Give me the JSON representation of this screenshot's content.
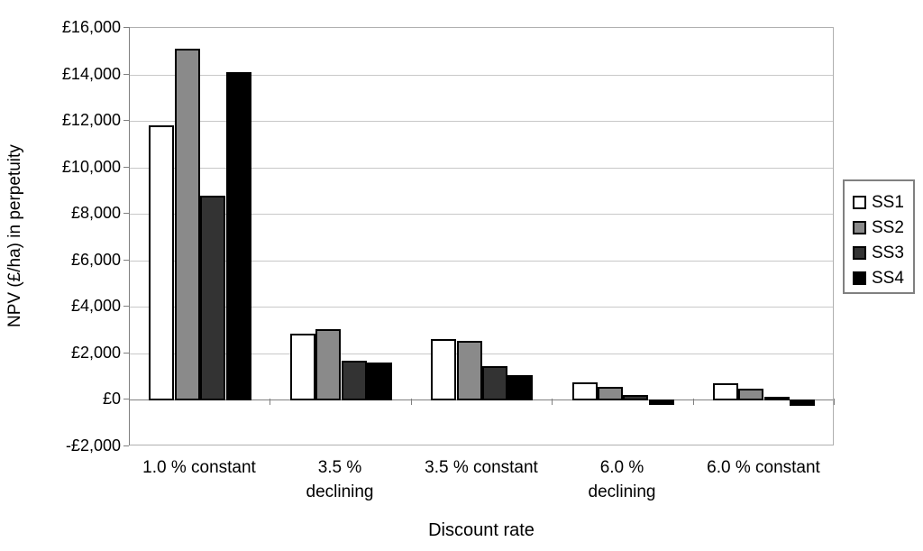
{
  "chart_data": {
    "type": "bar",
    "title": "",
    "xlabel": "Discount rate",
    "ylabel": "NPV (£/ha) in perpetuity",
    "categories": [
      "1.0 % constant",
      "3.5 %\ndeclining",
      "3.5 % constant",
      "6.0 %\ndeclining",
      "6.0 % constant"
    ],
    "series": [
      {
        "name": "SS1",
        "color": "#ffffff",
        "values": [
          11800,
          2850,
          2600,
          750,
          700
        ]
      },
      {
        "name": "SS2",
        "color": "#8a8a8a",
        "values": [
          15100,
          3050,
          2550,
          550,
          500
        ]
      },
      {
        "name": "SS3",
        "color": "#333333",
        "values": [
          8800,
          1700,
          1450,
          200,
          150
        ]
      },
      {
        "name": "SS4",
        "color": "#000000",
        "values": [
          14100,
          1600,
          1050,
          -200,
          -250
        ]
      }
    ],
    "ylim": [
      -2000,
      16000
    ],
    "yticks": [
      {
        "value": 16000,
        "label": "£16,000"
      },
      {
        "value": 14000,
        "label": "£14,000"
      },
      {
        "value": 12000,
        "label": "£12,000"
      },
      {
        "value": 10000,
        "label": "£10,000"
      },
      {
        "value": 8000,
        "label": "£8,000"
      },
      {
        "value": 6000,
        "label": "£6,000"
      },
      {
        "value": 4000,
        "label": "£4,000"
      },
      {
        "value": 2000,
        "label": "£2,000"
      },
      {
        "value": 0,
        "label": "£0"
      },
      {
        "value": -2000,
        "label": "-£2,000"
      }
    ],
    "grid": true,
    "legend_position": "right",
    "colors": {
      "gridline": "#c8c8c8",
      "axis": "#808080",
      "plot_border": "#b0b0b0",
      "bar_outline": "#000000",
      "text": "#000000",
      "background": "#ffffff"
    }
  }
}
